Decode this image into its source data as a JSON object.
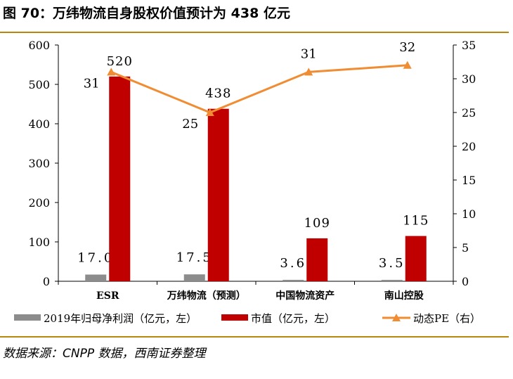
{
  "title": "图 70：万纬物流自身股权价值预计为 438 亿元",
  "source": "数据来源：CNPP 数据，西南证券整理",
  "colors": {
    "profit": "#8c8c8c",
    "market_cap": "#c00000",
    "pe": "#f08c32",
    "rule": "#b8860b"
  },
  "chart_data": {
    "type": "bar",
    "categories": [
      "ESR",
      "万纬物流（预测）",
      "中国物流资产",
      "南山控股"
    ],
    "series": [
      {
        "name": "2019年归母净利润（亿元，左）",
        "type": "bar",
        "axis": "left",
        "values": [
          17.0,
          17.5,
          3.6,
          3.5
        ],
        "labels": [
          "17.0",
          "17.5",
          "3.6",
          "3.5"
        ]
      },
      {
        "name": "市值（亿元，左）",
        "type": "bar",
        "axis": "left",
        "values": [
          520,
          438,
          109,
          115
        ],
        "labels": [
          "520",
          "438",
          "109",
          "115"
        ]
      },
      {
        "name": "动态PE（右）",
        "type": "line",
        "axis": "right",
        "values": [
          31,
          25,
          31,
          32
        ],
        "labels": [
          "31",
          "25",
          "31",
          "32"
        ]
      }
    ],
    "left_axis": {
      "min": 0,
      "max": 600,
      "ticks": [
        0,
        100,
        200,
        300,
        400,
        500,
        600
      ]
    },
    "right_axis": {
      "min": 0,
      "max": 35,
      "ticks": [
        0,
        5,
        10,
        15,
        20,
        25,
        30,
        35
      ]
    },
    "legend_position": "bottom",
    "grid": false
  }
}
